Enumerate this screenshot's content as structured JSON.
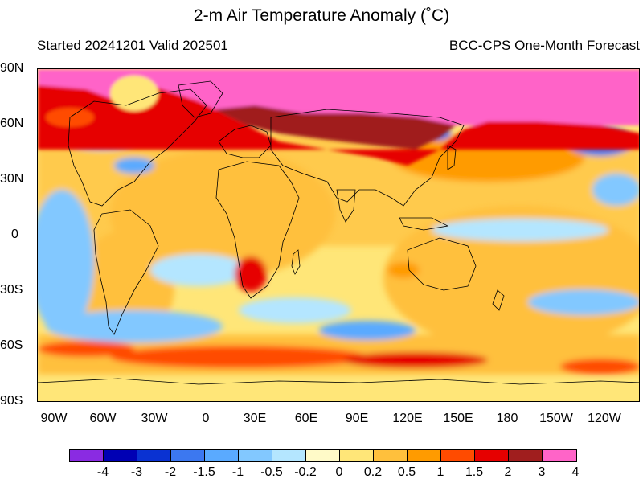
{
  "title": "2-m Air Temperature Anomaly (˚C)",
  "subtitle_left": "Started 20241201  Valid 202501",
  "subtitle_right": "BCC-CPS One-Month Forecast",
  "lat_labels": [
    "90N",
    "60N",
    "30N",
    "0",
    "30S",
    "60S",
    "90S"
  ],
  "lon_labels": [
    "90W",
    "60W",
    "30W",
    "0",
    "30E",
    "60E",
    "90E",
    "120E",
    "150E",
    "180",
    "150W",
    "120W"
  ],
  "colorbar": {
    "colors": [
      "#8a2be2",
      "#0000b4",
      "#0a32d2",
      "#3c78f0",
      "#5aaaff",
      "#82c8ff",
      "#b4e6ff",
      "#fffac8",
      "#ffe678",
      "#ffc03c",
      "#ff9b00",
      "#ff4b00",
      "#e60000",
      "#a01e1e",
      "#ff64c8"
    ],
    "labels": [
      "-4",
      "-3",
      "-2",
      "-1.5",
      "-1",
      "-0.5",
      "-0.2",
      "0",
      "0.2",
      "0.5",
      "1",
      "1.5",
      "2",
      "3",
      "4"
    ]
  }
}
